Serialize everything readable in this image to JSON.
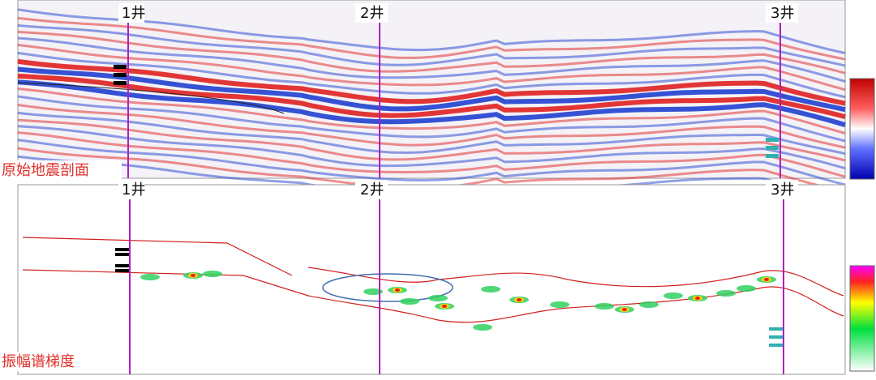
{
  "panels": [
    {
      "wells": [
        "1井",
        "2井",
        "3井"
      ],
      "label": "原始地震剖面"
    },
    {
      "wells": [
        "1井",
        "2井",
        "3井"
      ],
      "label": "振幅谱梯度"
    }
  ]
}
